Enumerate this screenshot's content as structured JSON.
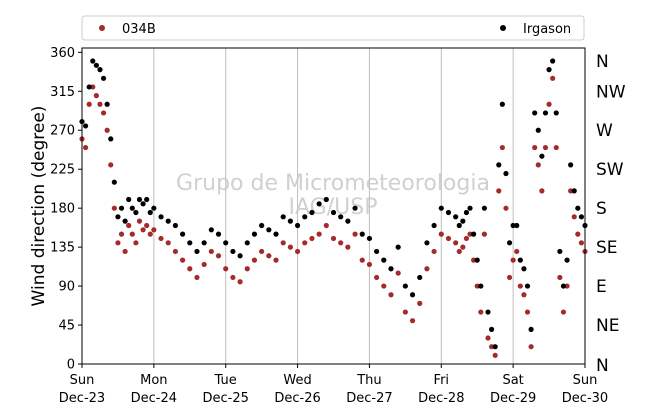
{
  "chart_data": {
    "type": "scatter",
    "title": "",
    "ylabel": "Wind direction (degree)",
    "xlabel": "",
    "ylim": [
      0,
      365
    ],
    "xlim": [
      0,
      7
    ],
    "grid": "vertical-at-days",
    "legend": {
      "placement": "top",
      "entries": [
        "034B",
        "Irgason"
      ]
    },
    "colors": {
      "034B": "#a52a2a",
      "Irgason": "#000000"
    },
    "watermark": [
      "Grupo de Micrometeorologia",
      "IAG/USP"
    ],
    "x_ticks": [
      {
        "day": "Sun",
        "date": "Dec-23"
      },
      {
        "day": "Mon",
        "date": "Dec-24"
      },
      {
        "day": "Tue",
        "date": "Dec-25"
      },
      {
        "day": "Wed",
        "date": "Dec-26"
      },
      {
        "day": "Thu",
        "date": "Dec-27"
      },
      {
        "day": "Fri",
        "date": "Dec-28"
      },
      {
        "day": "Sat",
        "date": "Dec-29"
      },
      {
        "day": "Sun",
        "date": "Dec-30"
      }
    ],
    "y_ticks": [
      0,
      45,
      90,
      135,
      180,
      225,
      270,
      315,
      360
    ],
    "compass": [
      "N",
      "NE",
      "E",
      "SE",
      "S",
      "SW",
      "W",
      "NW",
      "N"
    ],
    "series": [
      {
        "name": "034B",
        "x": [
          0.0,
          0.05,
          0.1,
          0.15,
          0.2,
          0.25,
          0.3,
          0.35,
          0.4,
          0.45,
          0.5,
          0.55,
          0.6,
          0.65,
          0.7,
          0.75,
          0.8,
          0.85,
          0.9,
          0.95,
          1.0,
          1.1,
          1.2,
          1.3,
          1.4,
          1.5,
          1.6,
          1.7,
          1.8,
          1.9,
          2.0,
          2.1,
          2.2,
          2.3,
          2.4,
          2.5,
          2.6,
          2.7,
          2.8,
          2.9,
          3.0,
          3.1,
          3.2,
          3.3,
          3.4,
          3.5,
          3.6,
          3.7,
          3.8,
          3.9,
          4.0,
          4.1,
          4.2,
          4.3,
          4.4,
          4.5,
          4.6,
          4.7,
          4.8,
          4.9,
          5.0,
          5.1,
          5.2,
          5.25,
          5.3,
          5.35,
          5.4,
          5.45,
          5.5,
          5.55,
          5.6,
          5.65,
          5.7,
          5.75,
          5.8,
          5.85,
          5.9,
          5.95,
          6.0,
          6.05,
          6.1,
          6.15,
          6.2,
          6.25,
          6.3,
          6.35,
          6.4,
          6.45,
          6.5,
          6.55,
          6.6,
          6.65,
          6.7,
          6.75,
          6.8,
          6.85,
          6.9,
          6.95,
          7.0
        ],
        "y": [
          260,
          250,
          300,
          320,
          310,
          300,
          290,
          270,
          230,
          180,
          140,
          150,
          130,
          160,
          150,
          140,
          165,
          155,
          160,
          150,
          155,
          145,
          140,
          130,
          120,
          110,
          100,
          115,
          130,
          125,
          110,
          100,
          95,
          110,
          120,
          130,
          125,
          120,
          140,
          135,
          130,
          140,
          145,
          150,
          160,
          145,
          140,
          135,
          150,
          120,
          115,
          100,
          90,
          80,
          105,
          60,
          50,
          70,
          110,
          130,
          150,
          145,
          140,
          130,
          135,
          145,
          150,
          120,
          90,
          60,
          150,
          30,
          20,
          10,
          200,
          250,
          180,
          100,
          120,
          130,
          90,
          80,
          60,
          20,
          250,
          230,
          200,
          250,
          300,
          330,
          250,
          100,
          60,
          90,
          200,
          170,
          150,
          140,
          130
        ]
      },
      {
        "name": "Irgason",
        "x": [
          0.0,
          0.05,
          0.1,
          0.15,
          0.2,
          0.25,
          0.3,
          0.35,
          0.4,
          0.45,
          0.5,
          0.55,
          0.6,
          0.65,
          0.7,
          0.75,
          0.8,
          0.85,
          0.9,
          0.95,
          1.0,
          1.1,
          1.2,
          1.3,
          1.4,
          1.5,
          1.6,
          1.7,
          1.8,
          1.9,
          2.0,
          2.1,
          2.2,
          2.3,
          2.4,
          2.5,
          2.6,
          2.7,
          2.8,
          2.9,
          3.0,
          3.1,
          3.2,
          3.3,
          3.4,
          3.5,
          3.6,
          3.7,
          3.8,
          3.9,
          4.0,
          4.1,
          4.2,
          4.3,
          4.4,
          4.5,
          4.6,
          4.7,
          4.8,
          4.9,
          5.0,
          5.1,
          5.2,
          5.25,
          5.3,
          5.35,
          5.4,
          5.45,
          5.5,
          5.55,
          5.6,
          5.65,
          5.7,
          5.75,
          5.8,
          5.85,
          5.9,
          5.95,
          6.0,
          6.05,
          6.1,
          6.15,
          6.2,
          6.25,
          6.3,
          6.35,
          6.4,
          6.45,
          6.5,
          6.55,
          6.6,
          6.65,
          6.7,
          6.75,
          6.8,
          6.85,
          6.9,
          6.95,
          7.0
        ],
        "y": [
          280,
          275,
          320,
          350,
          345,
          340,
          330,
          300,
          260,
          210,
          170,
          180,
          165,
          190,
          180,
          175,
          190,
          185,
          190,
          175,
          180,
          170,
          165,
          160,
          150,
          140,
          130,
          140,
          155,
          150,
          140,
          130,
          125,
          140,
          150,
          160,
          155,
          150,
          170,
          165,
          160,
          170,
          175,
          185,
          190,
          175,
          170,
          165,
          180,
          150,
          145,
          130,
          120,
          110,
          135,
          90,
          80,
          100,
          140,
          160,
          180,
          175,
          170,
          160,
          165,
          175,
          180,
          150,
          120,
          90,
          180,
          60,
          40,
          20,
          230,
          300,
          220,
          140,
          160,
          160,
          120,
          110,
          90,
          40,
          290,
          270,
          240,
          290,
          340,
          350,
          290,
          130,
          90,
          120,
          230,
          200,
          180,
          170,
          160
        ]
      }
    ]
  }
}
